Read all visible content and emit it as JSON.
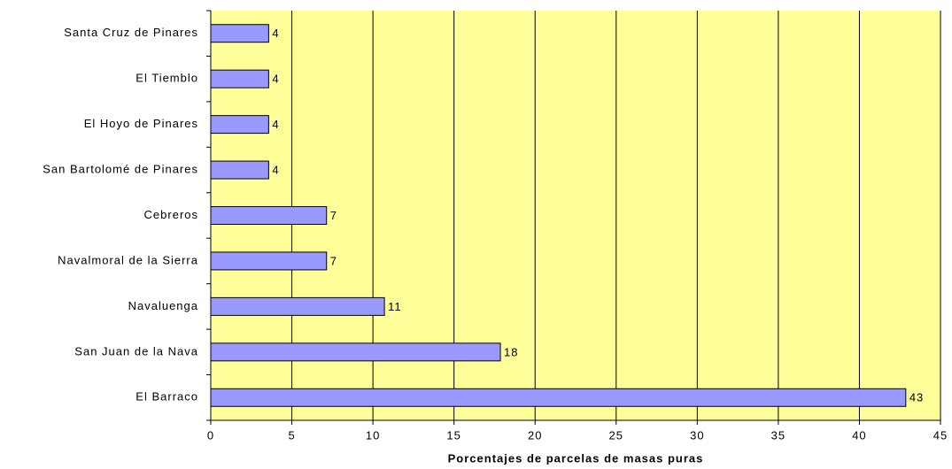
{
  "chart_data": {
    "type": "barh",
    "x_label": "Porcentajes de parcelas de masas puras",
    "categories": [
      "Santa Cruz de Pinares",
      "El Tiemblo",
      "El Hoyo de Pinares",
      "San Bartolomé de Pinares",
      "Cebreros",
      "Navalmoral de la Sierra",
      "Navaluenga",
      "San Juan de la Nava",
      "El Barraco"
    ],
    "values": [
      3.57,
      3.57,
      3.57,
      3.57,
      7.14,
      7.14,
      10.71,
      17.86,
      42.86
    ],
    "value_labels": [
      "4",
      "4",
      "4",
      "4",
      "7",
      "7",
      "11",
      "18",
      "43"
    ],
    "color": "#9999ff",
    "xlim": [
      0,
      45
    ],
    "xticks": [
      0,
      5,
      10,
      15,
      20,
      25,
      30,
      35,
      40,
      45
    ],
    "grid": true
  }
}
